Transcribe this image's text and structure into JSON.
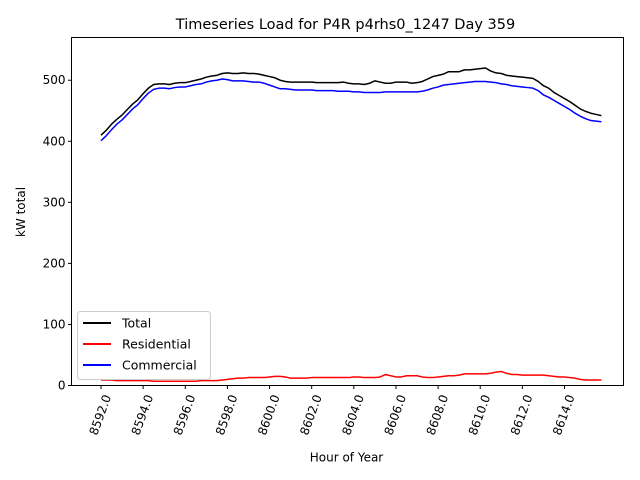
{
  "chart_data": {
    "type": "line",
    "title": "Timeseries Load for P4R p4rhs0_1247  Day 359",
    "xlabel": "Hour of Year",
    "ylabel": "kW total",
    "xlim": [
      8590.6,
      8616.8
    ],
    "ylim": [
      0,
      570
    ],
    "x_ticks": [
      8592.0,
      8594.0,
      8596.0,
      8598.0,
      8600.0,
      8602.0,
      8604.0,
      8606.0,
      8608.0,
      8610.0,
      8612.0,
      8614.0
    ],
    "x_tick_labels": [
      "8592.0",
      "8594.0",
      "8596.0",
      "8598.0",
      "8600.0",
      "8602.0",
      "8604.0",
      "8606.0",
      "8608.0",
      "8610.0",
      "8612.0",
      "8614.0"
    ],
    "y_ticks": [
      0,
      100,
      200,
      300,
      400,
      500
    ],
    "y_tick_labels": [
      "0",
      "100",
      "200",
      "300",
      "400",
      "500"
    ],
    "grid": false,
    "legend_position": "lower-left",
    "x": [
      8592.0,
      8592.25,
      8592.5,
      8592.75,
      8593.0,
      8593.25,
      8593.5,
      8593.75,
      8594.0,
      8594.25,
      8594.5,
      8594.75,
      8595.0,
      8595.25,
      8595.5,
      8595.75,
      8596.0,
      8596.25,
      8596.5,
      8596.75,
      8597.0,
      8597.25,
      8597.5,
      8597.75,
      8598.0,
      8598.25,
      8598.5,
      8598.75,
      8599.0,
      8599.25,
      8599.5,
      8599.75,
      8600.0,
      8600.25,
      8600.5,
      8600.75,
      8601.0,
      8601.25,
      8601.5,
      8601.75,
      8602.0,
      8602.25,
      8602.5,
      8602.75,
      8603.0,
      8603.25,
      8603.5,
      8603.75,
      8604.0,
      8604.25,
      8604.5,
      8604.75,
      8605.0,
      8605.25,
      8605.5,
      8605.75,
      8606.0,
      8606.25,
      8606.5,
      8606.75,
      8607.0,
      8607.25,
      8607.5,
      8607.75,
      8608.0,
      8608.25,
      8608.5,
      8608.75,
      8609.0,
      8609.25,
      8609.5,
      8609.75,
      8610.0,
      8610.25,
      8610.5,
      8610.75,
      8611.0,
      8611.25,
      8611.5,
      8611.75,
      8612.0,
      8612.25,
      8612.5,
      8612.75,
      8613.0,
      8613.25,
      8613.5,
      8613.75,
      8614.0,
      8614.25,
      8614.5,
      8614.75,
      8615.0,
      8615.25,
      8615.5,
      8615.75
    ],
    "series": [
      {
        "name": "Total",
        "color": "#000000",
        "values": [
          410,
          418,
          428,
          436,
          443,
          452,
          461,
          468,
          478,
          487,
          493,
          494,
          494,
          493,
          495,
          496,
          496,
          498,
          500,
          502,
          505,
          507,
          508,
          511,
          512,
          511,
          511,
          512,
          511,
          511,
          510,
          508,
          506,
          504,
          500,
          498,
          497,
          497,
          497,
          497,
          497,
          496,
          496,
          496,
          496,
          496,
          497,
          495,
          494,
          494,
          493,
          495,
          499,
          497,
          495,
          495,
          497,
          497,
          497,
          495,
          496,
          498,
          502,
          506,
          508,
          510,
          514,
          514,
          514,
          517,
          517,
          518,
          519,
          520,
          515,
          512,
          511,
          508,
          507,
          506,
          505,
          504,
          503,
          498,
          491,
          487,
          480,
          475,
          470,
          465,
          459,
          453,
          449,
          446,
          444,
          442
        ],
        "display_values": [
          410,
          418,
          428,
          436,
          443,
          452,
          461,
          468,
          478,
          487,
          493,
          494,
          494,
          493,
          495,
          496,
          496,
          498,
          500,
          502,
          505,
          507,
          508,
          511,
          512,
          511,
          511,
          512,
          511,
          511,
          510,
          508,
          506,
          504,
          500,
          498,
          497,
          497,
          497,
          497,
          497,
          496,
          496,
          496,
          496,
          496,
          497,
          495,
          494,
          494,
          493,
          495,
          499,
          497,
          495,
          495,
          497,
          497,
          497,
          495,
          496,
          498,
          502,
          506,
          508,
          510,
          514,
          514,
          514,
          517,
          517,
          518,
          519,
          520,
          515,
          512,
          511,
          508,
          507,
          506,
          505,
          504,
          503,
          498,
          491,
          487,
          480,
          475,
          470,
          465,
          459,
          453,
          449,
          446,
          444,
          442
        ]
      },
      {
        "name": "Residential",
        "color": "#ff0000",
        "values": [
          9,
          9,
          9,
          8,
          8,
          8,
          8,
          8,
          8,
          8,
          7,
          7,
          7,
          7,
          7,
          7,
          7,
          7,
          7,
          8,
          8,
          8,
          8,
          9,
          10,
          11,
          12,
          12,
          13,
          13,
          13,
          13,
          14,
          15,
          15,
          14,
          12,
          12,
          12,
          12,
          13,
          13,
          13,
          13,
          13,
          13,
          13,
          13,
          14,
          14,
          13,
          13,
          13,
          14,
          18,
          16,
          14,
          14,
          16,
          16,
          16,
          14,
          13,
          13,
          14,
          15,
          16,
          16,
          17,
          19,
          19,
          19,
          19,
          19,
          20,
          22,
          23,
          20,
          18,
          18,
          17,
          17,
          17,
          17,
          17,
          16,
          15,
          14,
          14,
          13,
          12,
          10,
          9,
          9,
          9,
          9
        ]
      },
      {
        "name": "Commercial",
        "color": "#0000ff",
        "values": [
          401,
          409,
          419,
          428,
          435,
          444,
          453,
          460,
          470,
          479,
          485,
          487,
          487,
          486,
          488,
          489,
          489,
          491,
          493,
          494,
          497,
          499,
          500,
          502,
          501,
          499,
          499,
          499,
          498,
          497,
          497,
          495,
          492,
          489,
          486,
          486,
          485,
          484,
          484,
          484,
          484,
          483,
          483,
          483,
          483,
          482,
          482,
          482,
          481,
          481,
          480,
          480,
          480,
          480,
          481,
          481,
          481,
          481,
          481,
          481,
          481,
          482,
          484,
          487,
          489,
          492,
          493,
          494,
          495,
          496,
          497,
          498,
          498,
          498,
          497,
          496,
          494,
          493,
          491,
          490,
          489,
          488,
          487,
          483,
          476,
          472,
          467,
          462,
          457,
          452,
          446,
          441,
          437,
          434,
          433,
          432
        ]
      }
    ]
  }
}
